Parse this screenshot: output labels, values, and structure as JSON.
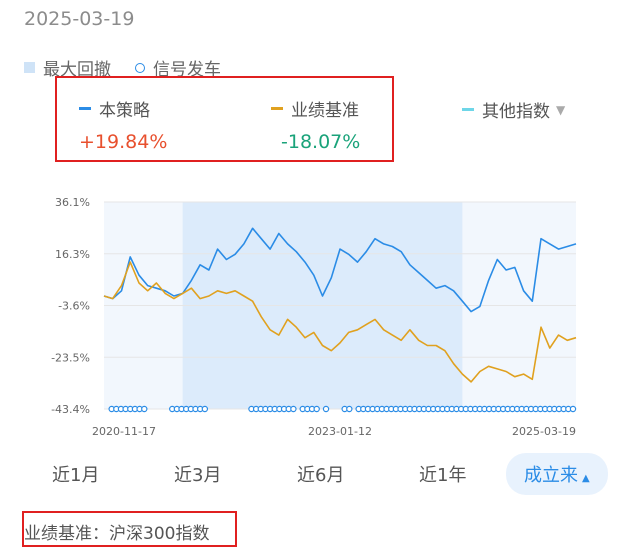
{
  "date": "2025-03-19",
  "legend": {
    "max_drawdown": "最大回撤",
    "signal": "信号发车"
  },
  "strategy": {
    "name": "本策略",
    "value": "+19.84%",
    "color": "#e8502e",
    "line_color": "#2b8ce6"
  },
  "benchmark": {
    "name": "业绩基准",
    "value": "-18.07%",
    "color": "#1aa37a",
    "line_color": "#e0a11f"
  },
  "other_index": {
    "label": "其他指数",
    "color": "#6ed6e8"
  },
  "chart_data": {
    "type": "line",
    "y_ticks": [
      "36.1%",
      "16.3%",
      "-3.6%",
      "-23.5%",
      "-43.4%"
    ],
    "x_ticks": [
      "2020-11-17",
      "2023-01-12",
      "2025-03-19"
    ],
    "ylim": [
      -43.4,
      36.1
    ],
    "series": [
      {
        "name": "本策略",
        "values": [
          0,
          -1,
          2,
          15,
          8,
          4,
          3,
          2,
          0,
          1,
          6,
          12,
          10,
          18,
          14,
          16,
          20,
          26,
          22,
          18,
          24,
          20,
          17,
          13,
          8,
          0,
          7,
          18,
          16,
          13,
          17,
          22,
          20,
          19,
          17,
          12,
          9,
          6,
          3,
          4,
          2,
          -2,
          -6,
          -4,
          6,
          14,
          10,
          11,
          2,
          -2,
          22,
          20,
          18,
          19,
          20
        ]
      },
      {
        "name": "业绩基准",
        "values": [
          0,
          -1,
          4,
          13,
          5,
          2,
          5,
          1,
          -1,
          1,
          3,
          -1,
          0,
          2,
          1,
          2,
          0,
          -2,
          -8,
          -13,
          -15,
          -9,
          -12,
          -16,
          -14,
          -19,
          -21,
          -18,
          -14,
          -13,
          -11,
          -9,
          -13,
          -15,
          -17,
          -13,
          -17,
          -19,
          -19,
          -21,
          -26,
          -30,
          -33,
          -29,
          -27,
          -28,
          -29,
          -31,
          -30,
          -32,
          -12,
          -20,
          -15,
          -17,
          -16
        ]
      }
    ],
    "drawdown_band": {
      "x_start_index": 9,
      "x_end_index": 41
    },
    "signal_points": [
      1,
      2,
      3,
      4,
      5,
      6,
      7,
      8,
      14,
      15,
      16,
      17,
      18,
      19,
      20,
      21,
      31,
      32,
      33,
      34,
      35,
      36,
      37,
      38,
      39,
      40,
      42,
      43,
      44,
      45,
      47,
      51,
      52,
      54,
      55,
      56,
      57,
      58,
      59,
      60,
      61,
      62,
      63,
      64,
      65,
      66,
      67,
      68,
      69,
      70,
      71,
      72,
      73,
      74,
      75,
      76,
      77,
      78,
      79,
      80,
      81,
      82,
      83,
      84,
      85,
      86,
      87,
      88,
      89,
      90,
      91,
      92,
      93,
      94,
      95,
      96,
      97,
      98,
      99,
      100
    ]
  },
  "periods": [
    "近1月",
    "近3月",
    "近6月",
    "近1年",
    "成立来"
  ],
  "active_period_arrow": "▲",
  "other_index_arrow": "▼",
  "benchmark_text": "业绩基准：沪深300指数"
}
